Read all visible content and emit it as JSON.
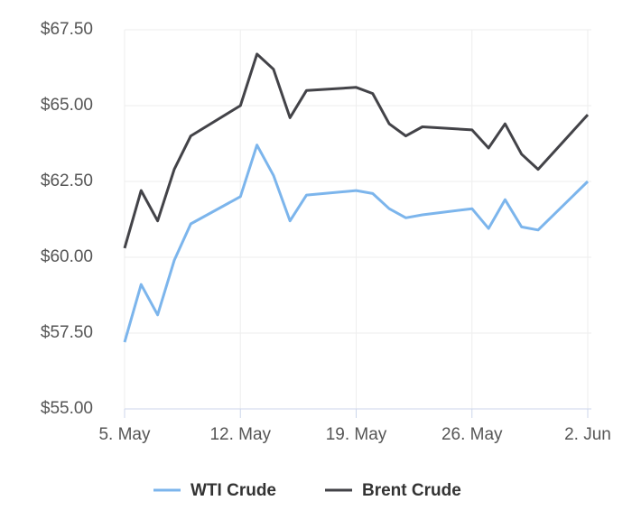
{
  "chart_data": {
    "type": "line",
    "x": [
      "5. May",
      "6. May",
      "7. May",
      "8. May",
      "9. May",
      "12. May",
      "13. May",
      "14. May",
      "15. May",
      "16. May",
      "19. May",
      "20. May",
      "21. May",
      "22. May",
      "23. May",
      "26. May",
      "27. May",
      "28. May",
      "29. May",
      "30. May",
      "2. Jun"
    ],
    "series": [
      {
        "name": "WTI Crude",
        "color": "#7cb5ec",
        "values": [
          57.2,
          59.1,
          58.1,
          59.9,
          61.1,
          62.0,
          63.7,
          62.7,
          61.2,
          62.05,
          62.2,
          62.1,
          61.6,
          61.3,
          61.4,
          61.6,
          60.95,
          61.9,
          61.0,
          60.9,
          62.5
        ]
      },
      {
        "name": "Brent Crude",
        "color": "#434348",
        "values": [
          60.3,
          62.2,
          61.2,
          62.9,
          64.0,
          65.0,
          66.7,
          66.2,
          64.6,
          65.5,
          65.6,
          65.4,
          64.4,
          64.0,
          64.3,
          64.2,
          63.6,
          64.4,
          63.4,
          62.9,
          64.7
        ]
      }
    ],
    "xlim": [
      "5. May",
      "2. Jun"
    ],
    "xticks": [
      "5. May",
      "12. May",
      "19. May",
      "26. May",
      "2. Jun"
    ],
    "ylim": [
      55,
      67.5
    ],
    "yticks": [
      {
        "value": 55,
        "label": "$55.00"
      },
      {
        "value": 57.5,
        "label": "$57.50"
      },
      {
        "value": 60,
        "label": "$60.00"
      },
      {
        "value": 62.5,
        "label": "$62.50"
      },
      {
        "value": 65,
        "label": "$65.00"
      },
      {
        "value": 67.5,
        "label": "$67.50"
      }
    ],
    "grid": true,
    "legend": "bottom"
  }
}
